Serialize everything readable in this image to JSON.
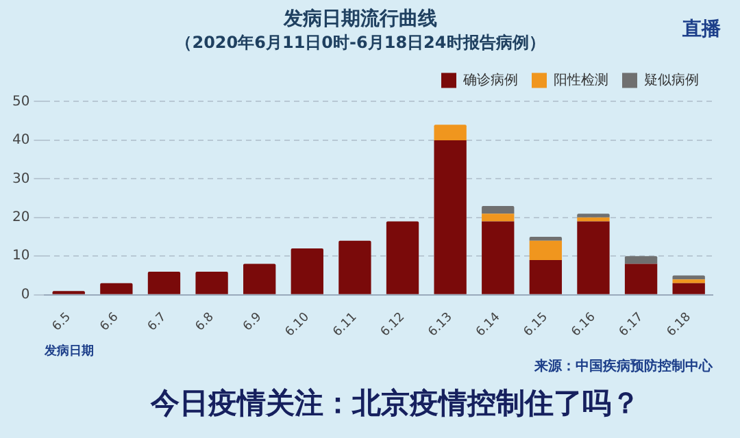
{
  "chart_data": {
    "type": "bar",
    "title": "发病日期流行曲线",
    "subtitle": "（2020年6月11日0时-6月18日24时报告病例）",
    "xlabel": "发病日期",
    "categories": [
      "6.5",
      "6.6",
      "6.7",
      "6.8",
      "6.9",
      "6.10",
      "6.11",
      "6.12",
      "6.13",
      "6.14",
      "6.15",
      "6.16",
      "6.17",
      "6.18"
    ],
    "series": [
      {
        "name": "确诊病例",
        "color": "#7a0a0a",
        "values": [
          1,
          3,
          6,
          6,
          8,
          12,
          14,
          19,
          40,
          19,
          9,
          19,
          8,
          3
        ]
      },
      {
        "name": "阳性检测",
        "color": "#f0961e",
        "values": [
          null,
          null,
          null,
          null,
          null,
          null,
          null,
          null,
          4,
          2,
          5,
          1,
          null,
          1
        ]
      },
      {
        "name": "疑似病例",
        "color": "#707070",
        "values": [
          null,
          null,
          null,
          null,
          null,
          null,
          null,
          null,
          null,
          2,
          1,
          1,
          2,
          1
        ]
      }
    ],
    "stacked": true,
    "ylim": [
      0,
      50
    ],
    "yticks": [
      0,
      10,
      20,
      30,
      40,
      50
    ],
    "grid": "y",
    "legend": "top right",
    "annotations": [
      "来源：中国疾病预防控制中心",
      "今日疫情关注：北京疫情控制住了吗？",
      "直播"
    ]
  }
}
